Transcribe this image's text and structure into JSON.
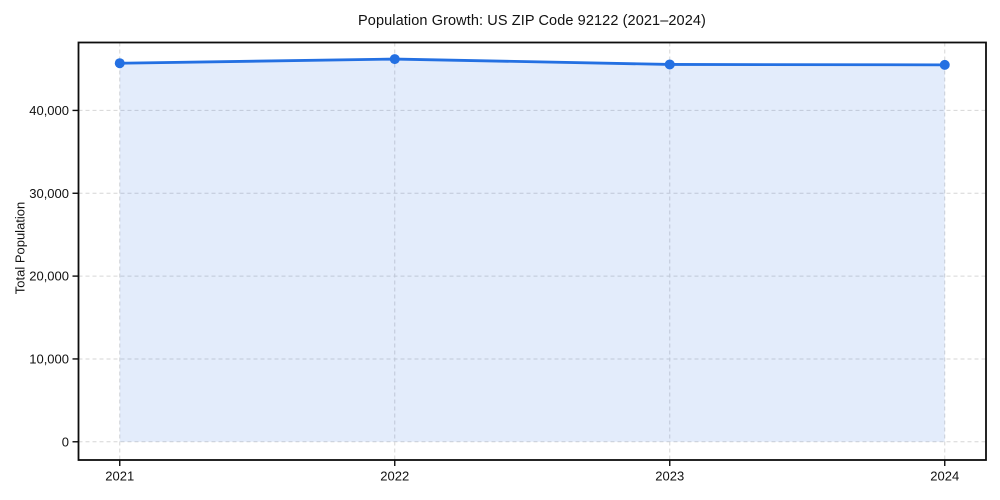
{
  "chart_data": {
    "type": "line",
    "title": "Population Growth: US ZIP Code 92122 (2021–2024)",
    "xlabel": "",
    "ylabel": "Total Population",
    "x": [
      2021,
      2022,
      2023,
      2024
    ],
    "xtick_labels": [
      "2021",
      "2022",
      "2023",
      "2024"
    ],
    "series": [
      {
        "name": "Total Population",
        "values": [
          45700,
          46200,
          45550,
          45500
        ]
      }
    ],
    "yticks": [
      {
        "value": 0,
        "label": "0"
      },
      {
        "value": 10000,
        "label": "10,000"
      },
      {
        "value": 20000,
        "label": "20,000"
      },
      {
        "value": 30000,
        "label": "30,000"
      },
      {
        "value": 40000,
        "label": "40,000"
      }
    ],
    "ylim": [
      -2200,
      48200
    ],
    "xlim_margin_fraction": 0.05,
    "grid": true,
    "grid_style": "dashed",
    "legend_position": "none",
    "marker": "circle",
    "style": {
      "line_color": "#2470e2",
      "marker_color": "#2470e2",
      "fill_color": "rgba(36,112,226,0.13)",
      "grid_color": "#d6d6d6",
      "axis_color": "#0d0d0d",
      "text_color": "#111111",
      "background_color": "#ffffff"
    }
  }
}
